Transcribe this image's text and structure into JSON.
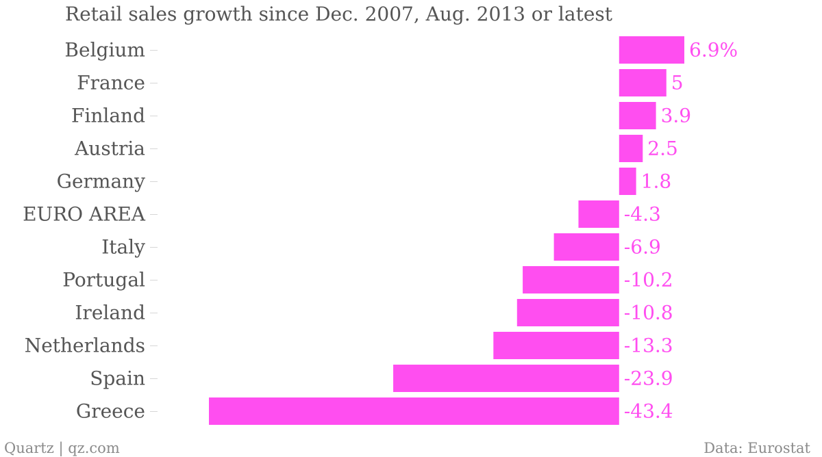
{
  "chart_data": {
    "type": "bar",
    "orientation": "horizontal",
    "title": "Retail sales growth since Dec. 2007, Aug. 2013 or latest",
    "categories": [
      "Belgium",
      "France",
      "Finland",
      "Austria",
      "Germany",
      "EURO AREA",
      "Italy",
      "Portugal",
      "Ireland",
      "Netherlands",
      "Spain",
      "Greece"
    ],
    "values": [
      6.9,
      5,
      3.9,
      2.5,
      1.8,
      -4.3,
      -6.9,
      -10.2,
      -10.8,
      -13.3,
      -23.9,
      -43.4
    ],
    "value_labels": [
      "6.9%",
      "5",
      "3.9",
      "2.5",
      "1.8",
      "-4.3",
      "-6.9",
      "-10.2",
      "-10.8",
      "-13.3",
      "-23.9",
      "-43.4"
    ],
    "xlim": [
      -43.4,
      6.9
    ],
    "grid": false,
    "bar_color": "#ff4ef0"
  },
  "footer": {
    "source_left": "Quartz | qz.com",
    "source_right": "Data: Eurostat"
  }
}
